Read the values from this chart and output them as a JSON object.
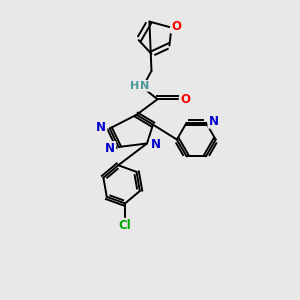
{
  "background_color": "#e8e8e8",
  "bond_color": "#000000",
  "atom_colors": {
    "N": "#0000cc",
    "O": "#ff0000",
    "Cl": "#00aa00",
    "H": "#4a9999"
  },
  "lw": 1.4,
  "fs": 8.0
}
